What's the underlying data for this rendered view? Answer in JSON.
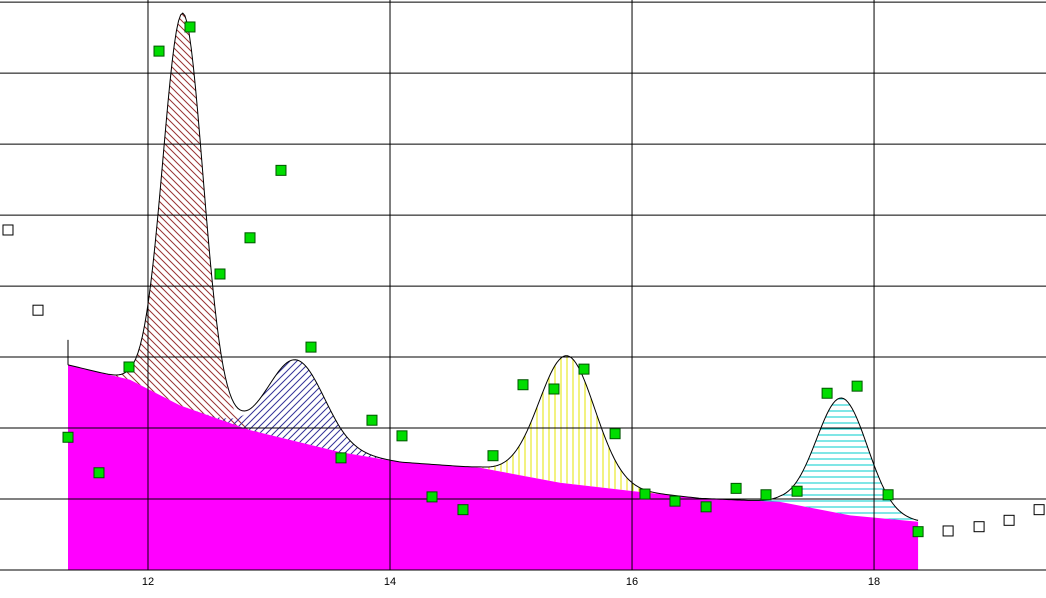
{
  "chart_data": {
    "type": "peakfit",
    "xlim": [
      10.777,
      19.421
    ],
    "ylim": [
      0,
      8.03
    ],
    "xticks": [
      12,
      14,
      16,
      18
    ],
    "ygridlines": [
      0,
      1,
      2,
      3,
      4,
      5,
      6,
      7,
      8
    ],
    "grid": true,
    "baseline": {
      "color": "#ff00ff",
      "x": [
        11.339,
        11.851,
        12.264,
        12.843,
        13.587,
        14.083,
        14.744,
        15.405,
        16.066,
        16.562,
        17.223,
        17.802,
        18.364
      ],
      "y": [
        2.89,
        2.68,
        2.32,
        1.97,
        1.66,
        1.52,
        1.44,
        1.23,
        1.1,
        1.01,
        0.96,
        0.77,
        0.68
      ]
    },
    "peaks": [
      {
        "center": 12.289,
        "height": 5.54,
        "sigma": 0.165,
        "color": "#993333",
        "hatch": "diag-back"
      },
      {
        "center": 13.231,
        "height": 1.15,
        "sigma": 0.23,
        "color": "#333399",
        "hatch": "diag-fwd"
      },
      {
        "center": 15.463,
        "height": 1.8,
        "sigma": 0.23,
        "color": "#e6e600",
        "hatch": "vertical"
      },
      {
        "center": 17.736,
        "height": 1.63,
        "sigma": 0.21,
        "color": "#00cccc",
        "hatch": "horizontal"
      }
    ],
    "series": [
      {
        "marker": "filled",
        "color": "#00dd00",
        "x": [
          11.339,
          11.595,
          11.843,
          12.091,
          12.347,
          12.595,
          12.843,
          13.099,
          13.347,
          13.595,
          13.851,
          14.099,
          14.347,
          14.603,
          14.851,
          15.099,
          15.355,
          15.603,
          15.86,
          16.107,
          16.355,
          16.612,
          16.86,
          17.107,
          17.364,
          17.612,
          17.86,
          18.116,
          18.364
        ],
        "values": [
          1.87,
          1.37,
          2.86,
          7.31,
          7.65,
          4.17,
          4.68,
          5.63,
          3.14,
          1.58,
          2.11,
          1.89,
          1.03,
          0.85,
          1.61,
          2.61,
          2.55,
          2.83,
          1.92,
          1.07,
          0.97,
          0.89,
          1.15,
          1.06,
          1.11,
          2.49,
          2.59,
          1.06,
          0.54
        ]
      },
      {
        "marker": "hollow",
        "color": "#000000",
        "x": [
          10.843,
          11.091,
          18.612,
          18.868,
          19.116,
          19.364
        ],
        "values": [
          4.79,
          3.66,
          0.55,
          0.61,
          0.7,
          0.85
        ]
      }
    ]
  }
}
